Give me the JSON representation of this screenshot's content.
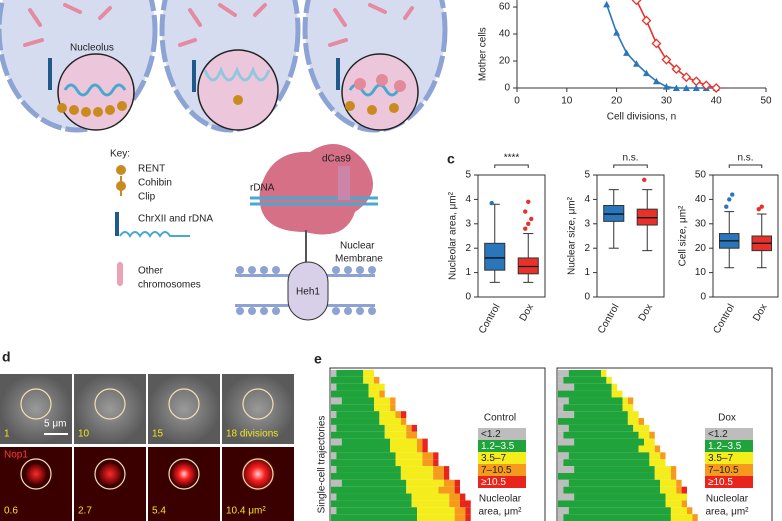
{
  "panel_a": {
    "nucleolus_label": "Nucleolus"
  },
  "key": {
    "title": "Key:",
    "items": [
      "RENT",
      "Cohibin",
      "Clip",
      "ChrXII and rDNA",
      "Other",
      "chromosomes"
    ]
  },
  "diagram": {
    "dcas9": "dCas9",
    "rdna": "rDNA",
    "membrane": [
      "Nuclear",
      "Membrane"
    ],
    "anchor": "Heh1"
  },
  "panel_d": {
    "label": "d",
    "scale_bar": "5 μm",
    "channel": "Nop1",
    "divisions": [
      "1",
      "10",
      "15",
      "18 divisions"
    ],
    "areas": [
      "0.6",
      "2.7",
      "5.4",
      "10.4 μm²"
    ]
  },
  "chart_data": [
    {
      "type": "line",
      "ylabel": "Mother cells",
      "xlabel": "Cell divisions, n",
      "x": [
        18,
        20,
        22,
        24,
        26,
        28,
        30,
        32,
        34,
        36,
        38,
        40
      ],
      "xlim": [
        0,
        50
      ],
      "ylim": [
        0,
        65
      ],
      "xticks": [
        0,
        10,
        20,
        30,
        40,
        50
      ],
      "yticks": [
        0,
        20,
        40,
        60
      ],
      "series": [
        {
          "color": "#2a76bb",
          "marker": "triangle",
          "values": [
            62,
            41,
            26,
            18,
            11,
            5,
            1,
            0,
            0,
            0,
            0,
            0
          ]
        },
        {
          "color": "#e8312b",
          "marker": "diamond",
          "values": [
            null,
            null,
            null,
            65,
            50,
            33,
            21,
            14,
            8,
            5,
            2,
            0
          ]
        }
      ]
    },
    {
      "type": "box",
      "panel_label": "c",
      "ylabel": "Nucleolar area, μm²",
      "annotation": "****",
      "categories": [
        "Control",
        "Dox"
      ],
      "colors": [
        "#2a76bb",
        "#e8312b"
      ],
      "ylim": [
        0,
        5
      ],
      "yticks": [
        0,
        1,
        2,
        3,
        4,
        5
      ],
      "boxes": [
        {
          "min": 0.6,
          "q1": 1.1,
          "median": 1.6,
          "q3": 2.2,
          "max": 3.8,
          "outliers": [
            3.85
          ]
        },
        {
          "min": 0.6,
          "q1": 0.95,
          "median": 1.25,
          "q3": 1.6,
          "max": 2.6,
          "outliers": [
            2.8,
            3.0,
            3.2,
            3.5,
            3.9
          ]
        }
      ]
    },
    {
      "type": "box",
      "ylabel": "Nuclear size, μm²",
      "annotation": "n.s.",
      "categories": [
        "Control",
        "Dox"
      ],
      "colors": [
        "#2a76bb",
        "#e8312b"
      ],
      "ylim": [
        0,
        5
      ],
      "yticks": [
        0,
        1,
        2,
        3,
        4,
        5
      ],
      "boxes": [
        {
          "min": 2.0,
          "q1": 3.1,
          "median": 3.4,
          "q3": 3.75,
          "max": 4.4,
          "outliers": []
        },
        {
          "min": 1.9,
          "q1": 2.95,
          "median": 3.25,
          "q3": 3.6,
          "max": 4.4,
          "outliers": [
            4.8
          ]
        }
      ]
    },
    {
      "type": "box",
      "ylabel": "Cell size, μm²",
      "annotation": "n.s.",
      "categories": [
        "Control",
        "Dox"
      ],
      "colors": [
        "#2a76bb",
        "#e8312b"
      ],
      "ylim": [
        0,
        50
      ],
      "yticks": [
        0,
        10,
        20,
        30,
        40,
        50
      ],
      "boxes": [
        {
          "min": 12,
          "q1": 20,
          "median": 23,
          "q3": 26,
          "max": 35,
          "outliers": [
            37,
            40,
            42
          ]
        },
        {
          "min": 12,
          "q1": 19,
          "median": 22,
          "q3": 25,
          "max": 34,
          "outliers": [
            36,
            37
          ]
        }
      ]
    },
    {
      "type": "heatmap",
      "panel_label": "e",
      "ylabel": "Single-cell trajectories",
      "title": "Control",
      "xlim": [
        0,
        40
      ],
      "legend": [
        {
          "label": "<1.2",
          "color": "#bdbdbd"
        },
        {
          "label": "1.2–3.5",
          "color": "#1fa33a"
        },
        {
          "label": "3.5–7",
          "color": "#f5ec1c"
        },
        {
          "label": "7–10.5",
          "color": "#f59a1c"
        },
        {
          "label": "≥10.5",
          "color": "#e8241c"
        }
      ],
      "legend_title": [
        "Nucleolar",
        "area, μm²"
      ],
      "rows": [
        [
          1,
          5,
          2,
          0,
          0
        ],
        [
          0,
          6,
          2,
          1,
          0
        ],
        [
          1,
          6,
          3,
          0,
          0
        ],
        [
          0,
          7,
          2,
          1,
          0
        ],
        [
          2,
          6,
          3,
          1,
          0
        ],
        [
          0,
          8,
          3,
          1,
          0
        ],
        [
          1,
          8,
          3,
          1,
          1
        ],
        [
          0,
          9,
          4,
          1,
          0
        ],
        [
          1,
          9,
          4,
          1,
          1
        ],
        [
          0,
          10,
          4,
          2,
          0
        ],
        [
          2,
          9,
          5,
          1,
          1
        ],
        [
          0,
          11,
          5,
          1,
          1
        ],
        [
          1,
          11,
          5,
          2,
          1
        ],
        [
          0,
          12,
          5,
          2,
          1
        ],
        [
          1,
          12,
          6,
          2,
          1
        ],
        [
          0,
          13,
          6,
          2,
          1
        ],
        [
          2,
          12,
          7,
          2,
          1
        ],
        [
          0,
          14,
          6,
          3,
          1
        ],
        [
          1,
          14,
          7,
          2,
          1
        ],
        [
          0,
          15,
          7,
          2,
          2
        ],
        [
          1,
          15,
          7,
          2,
          1
        ],
        [
          0,
          16,
          7,
          2,
          1
        ]
      ]
    },
    {
      "type": "heatmap",
      "title": "Dox",
      "xlim": [
        0,
        40
      ],
      "legend": [
        {
          "label": "<1.2",
          "color": "#bdbdbd"
        },
        {
          "label": "1.2–3.5",
          "color": "#1fa33a"
        },
        {
          "label": "3.5–7",
          "color": "#f5ec1c"
        },
        {
          "label": "7–10.5",
          "color": "#f59a1c"
        },
        {
          "label": "≥10.5",
          "color": "#e8241c"
        }
      ],
      "legend_title": [
        "Nucleolar",
        "area, μm²"
      ],
      "rows": [
        [
          2,
          6,
          1,
          0,
          0
        ],
        [
          1,
          8,
          1,
          0,
          0
        ],
        [
          3,
          7,
          1,
          0,
          0
        ],
        [
          0,
          10,
          2,
          0,
          0
        ],
        [
          2,
          10,
          1,
          1,
          0
        ],
        [
          1,
          11,
          2,
          0,
          0
        ],
        [
          3,
          10,
          2,
          0,
          0
        ],
        [
          0,
          13,
          2,
          1,
          0
        ],
        [
          2,
          12,
          3,
          0,
          0
        ],
        [
          1,
          14,
          2,
          1,
          0
        ],
        [
          3,
          13,
          2,
          0,
          0
        ],
        [
          0,
          15,
          3,
          1,
          0
        ],
        [
          2,
          15,
          2,
          1,
          0
        ],
        [
          1,
          16,
          3,
          0,
          0
        ],
        [
          3,
          15,
          3,
          1,
          0
        ],
        [
          0,
          18,
          3,
          1,
          0
        ],
        [
          2,
          17,
          3,
          1,
          0
        ],
        [
          1,
          18,
          3,
          1,
          1
        ],
        [
          3,
          17,
          4,
          0,
          0
        ],
        [
          0,
          20,
          3,
          1,
          0
        ],
        [
          2,
          19,
          3,
          1,
          0
        ],
        [
          1,
          20,
          4,
          1,
          0
        ]
      ]
    }
  ]
}
